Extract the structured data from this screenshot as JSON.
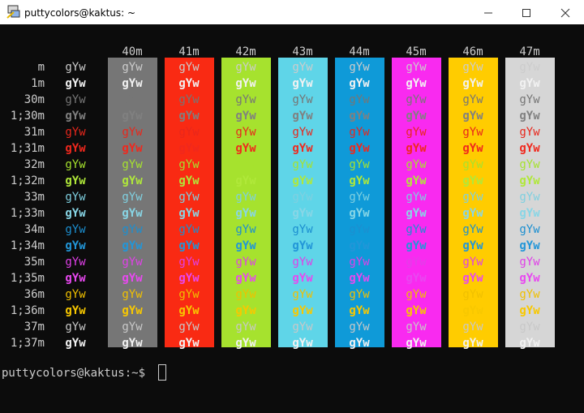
{
  "window": {
    "title": "puttycolors@kaktus: ~"
  },
  "terminal": {
    "background": "#0c0c0c",
    "default_foreground": "#cccccc",
    "bg_headers": [
      "40m",
      "41m",
      "42m",
      "43m",
      "44m",
      "45m",
      "46m",
      "47m"
    ],
    "bg_colors": [
      "#767676",
      "#f92a13",
      "#a6e22e",
      "#5fd5e8",
      "#0f9ad8",
      "#f92af0",
      "#ffcc00",
      "#d6d6d6"
    ],
    "row_labels": [
      "m",
      "1m",
      "30m",
      "1;30m",
      "31m",
      "1;31m",
      "32m",
      "1;32m",
      "33m",
      "1;33m",
      "34m",
      "1;34m",
      "35m",
      "1;35m",
      "36m",
      "1;36m",
      "37m",
      "1;37m"
    ],
    "fg_colors": [
      "#cccccc",
      "#f2f2f2",
      "#767676",
      "#808080",
      "#e8271c",
      "#f0281d",
      "#a6e22e",
      "#b0e83a",
      "#7fd0e0",
      "#88d6e6",
      "#1c8fd0",
      "#2296d8",
      "#e040e8",
      "#e848f0",
      "#f0c000",
      "#f8c800",
      "#c8c8c8",
      "#f2f2f2"
    ],
    "sample": "gYw",
    "prompt": "puttycolors@kaktus:~$"
  }
}
